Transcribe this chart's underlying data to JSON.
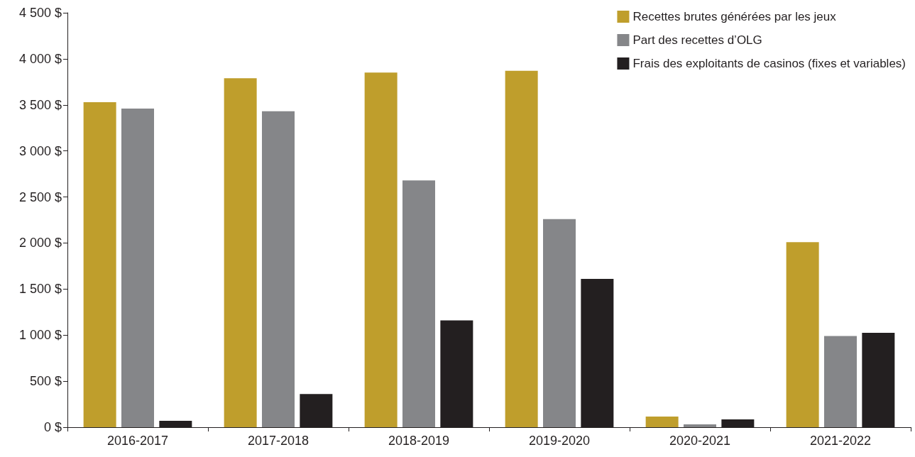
{
  "chart_data": {
    "type": "bar",
    "categories": [
      "2016-2017",
      "2017-2018",
      "2018-2019",
      "2019-2020",
      "2020-2021",
      "2021-2022"
    ],
    "series": [
      {
        "name": "Recettes brutes générées par les jeux",
        "color": "#bf9e2c",
        "values": [
          3530,
          3790,
          3850,
          3870,
          115,
          2010
        ]
      },
      {
        "name": "Part des recettes d’OLG",
        "color": "#858689",
        "values": [
          3460,
          3430,
          2680,
          2260,
          30,
          990
        ]
      },
      {
        "name": "Frais des exploitants de casinos (fixes et variables)",
        "color": "#231f20",
        "values": [
          70,
          360,
          1160,
          1610,
          85,
          1025
        ]
      }
    ],
    "ylim": [
      0,
      4500
    ],
    "yticks": [
      {
        "value": 0,
        "label": "0 $"
      },
      {
        "value": 500,
        "label": "500 $"
      },
      {
        "value": 1000,
        "label": "1 000 $"
      },
      {
        "value": 1500,
        "label": "1 500 $"
      },
      {
        "value": 2000,
        "label": "2 000 $"
      },
      {
        "value": 2500,
        "label": "2 500 $"
      },
      {
        "value": 3000,
        "label": "3 000 $"
      },
      {
        "value": 3500,
        "label": "3 500 $"
      },
      {
        "value": 4000,
        "label": "4 000 $"
      },
      {
        "value": 4500,
        "label": "4 500 $"
      }
    ],
    "grid": false,
    "legend": "top right"
  }
}
